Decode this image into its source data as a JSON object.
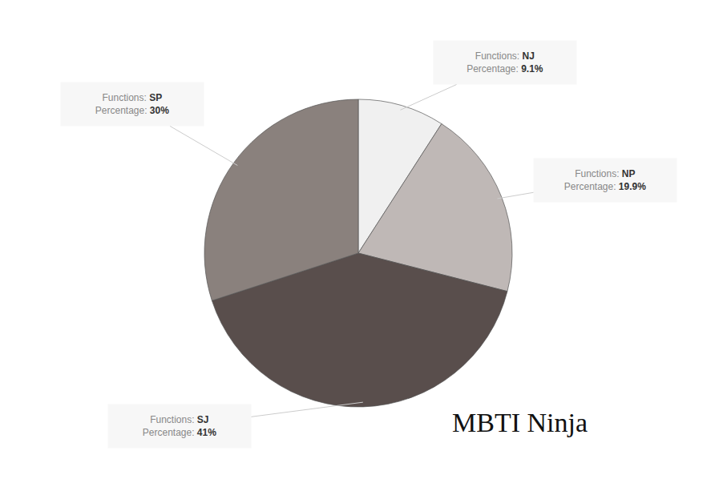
{
  "chart_data": {
    "type": "pie",
    "categories": [
      "NJ",
      "NP",
      "SJ",
      "SP"
    ],
    "values": [
      9.1,
      19.9,
      41,
      30
    ],
    "value_labels": [
      "9.1%",
      "19.9%",
      "41%",
      "30%"
    ],
    "colors": [
      "#f0f0f0",
      "#bfb8b6",
      "#594e4c",
      "#8a817d"
    ],
    "data_labels": true,
    "field_labels": {
      "category": "Functions:",
      "value": "Percentage:"
    },
    "logo_text": "MBTI Ninja"
  }
}
